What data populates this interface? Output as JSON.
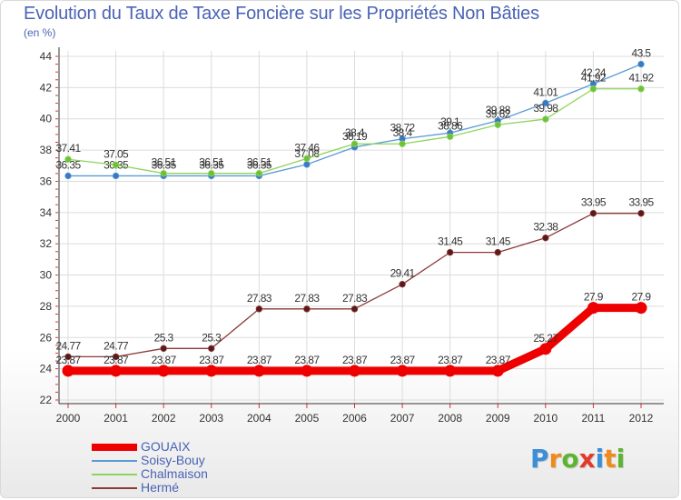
{
  "header": {
    "title": "Evolution du Taux de Taxe Foncière sur les Propriétés Non Bâties",
    "unit": "(en %)"
  },
  "brand": {
    "text": "Proxiti",
    "letters": [
      {
        "ch": "P",
        "color": "#3b8fd6"
      },
      {
        "ch": "r",
        "color": "#f08a1c"
      },
      {
        "ch": "o",
        "color": "#5cb531"
      },
      {
        "ch": "x",
        "color": "#e23a2c"
      },
      {
        "ch": "i",
        "color": "#3b8fd6"
      },
      {
        "ch": "t",
        "color": "#f08a1c"
      },
      {
        "ch": "i",
        "color": "#5cb531"
      }
    ]
  },
  "chart_data": {
    "type": "line",
    "title": "Evolution du Taux de Taxe Foncière sur les Propriétés Non Bâties",
    "ylabel": "(en %)",
    "xlabel": "",
    "x": [
      "2000",
      "2001",
      "2002",
      "2003",
      "2004",
      "2005",
      "2006",
      "2007",
      "2008",
      "2009",
      "2010",
      "2011",
      "2012"
    ],
    "ylim": [
      22,
      44
    ],
    "yticks": [
      "22",
      "24",
      "26",
      "28",
      "30",
      "32",
      "34",
      "36",
      "38",
      "40",
      "42",
      "44"
    ],
    "grid": true,
    "legend": "bottom-left",
    "series": [
      {
        "name": "GOUAIX",
        "color": "#ee0000",
        "emphasis": true,
        "values": [
          23.87,
          23.87,
          23.87,
          23.87,
          23.87,
          23.87,
          23.87,
          23.87,
          23.87,
          23.87,
          25.27,
          27.9,
          27.9
        ],
        "labels": [
          "23.87",
          "23.87",
          "23.87",
          "23.87",
          "23.87",
          "23.87",
          "23.87",
          "23.87",
          "23.87",
          "23.87",
          "25.27",
          "27.9",
          "27.9"
        ]
      },
      {
        "name": "Soisy-Bouy",
        "color": "#5b9bd5",
        "marker": "#3a78c2",
        "values": [
          36.35,
          36.35,
          36.35,
          36.35,
          36.35,
          37.08,
          38.19,
          38.72,
          39.1,
          39.88,
          41.01,
          42.24,
          43.5
        ],
        "labels": [
          "36.35",
          "36.35",
          "36.35",
          "36.35",
          "36.35",
          "37.08",
          "38.19",
          "38.72",
          "39.1",
          "39.88",
          "41.01",
          "42.24",
          "43.5"
        ]
      },
      {
        "name": "Chalmaison",
        "color": "#8fd45a",
        "marker": "#6cc13a",
        "values": [
          37.41,
          37.05,
          36.51,
          36.51,
          36.51,
          37.46,
          38.4,
          38.4,
          38.86,
          39.62,
          39.98,
          41.92,
          41.92
        ],
        "labels": [
          "37.41",
          "37.05",
          "36.51",
          "36.51",
          "36.51",
          "37.46",
          "38.4",
          "38.4",
          "38.86",
          "39.62",
          "39.98",
          "41.92",
          "41.92"
        ]
      },
      {
        "name": "Hermé",
        "color": "#8b3a3a",
        "marker": "#5a1a1a",
        "values": [
          24.77,
          24.77,
          25.3,
          25.3,
          27.83,
          27.83,
          27.83,
          29.41,
          31.45,
          31.45,
          32.38,
          33.95,
          33.95
        ],
        "labels": [
          "24.77",
          "24.77",
          "25.3",
          "25.3",
          "27.83",
          "27.83",
          "27.83",
          "29.41",
          "31.45",
          "31.45",
          "32.38",
          "33.95",
          "33.95"
        ]
      }
    ]
  }
}
